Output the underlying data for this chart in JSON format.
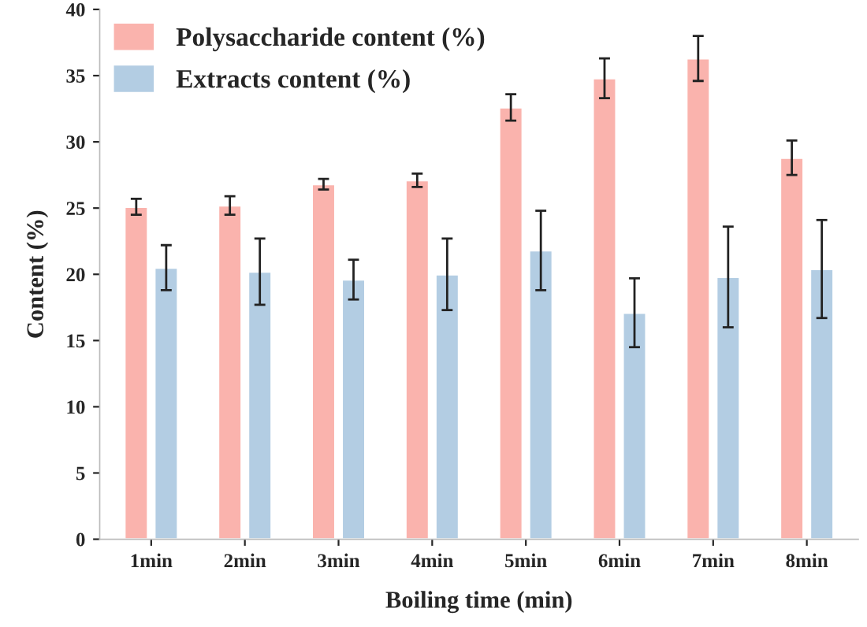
{
  "chart_data": {
    "type": "bar",
    "xlabel": "Boiling time (min)",
    "ylabel": "Content (%)",
    "categories": [
      "1min",
      "2min",
      "3min",
      "4min",
      "5min",
      "6min",
      "7min",
      "8min"
    ],
    "series": [
      {
        "name": "Polysaccharide content (%)",
        "color": "#fab3ad",
        "values": [
          25.1,
          25.2,
          26.8,
          27.1,
          32.6,
          34.8,
          36.3,
          28.8
        ],
        "errors": [
          0.6,
          0.7,
          0.4,
          0.5,
          1.0,
          1.5,
          1.7,
          1.3
        ]
      },
      {
        "name": "Extracts content (%)",
        "color": "#b3cde3",
        "values": [
          20.5,
          20.2,
          19.6,
          20.0,
          21.8,
          17.1,
          19.8,
          20.4
        ],
        "errors": [
          1.7,
          2.5,
          1.5,
          2.7,
          3.0,
          2.6,
          3.8,
          3.7
        ]
      }
    ],
    "ylim": [
      0,
      40
    ],
    "yticks": [
      0,
      5,
      10,
      15,
      20,
      25,
      30,
      35,
      40
    ],
    "grid": false,
    "legend": "top left"
  }
}
